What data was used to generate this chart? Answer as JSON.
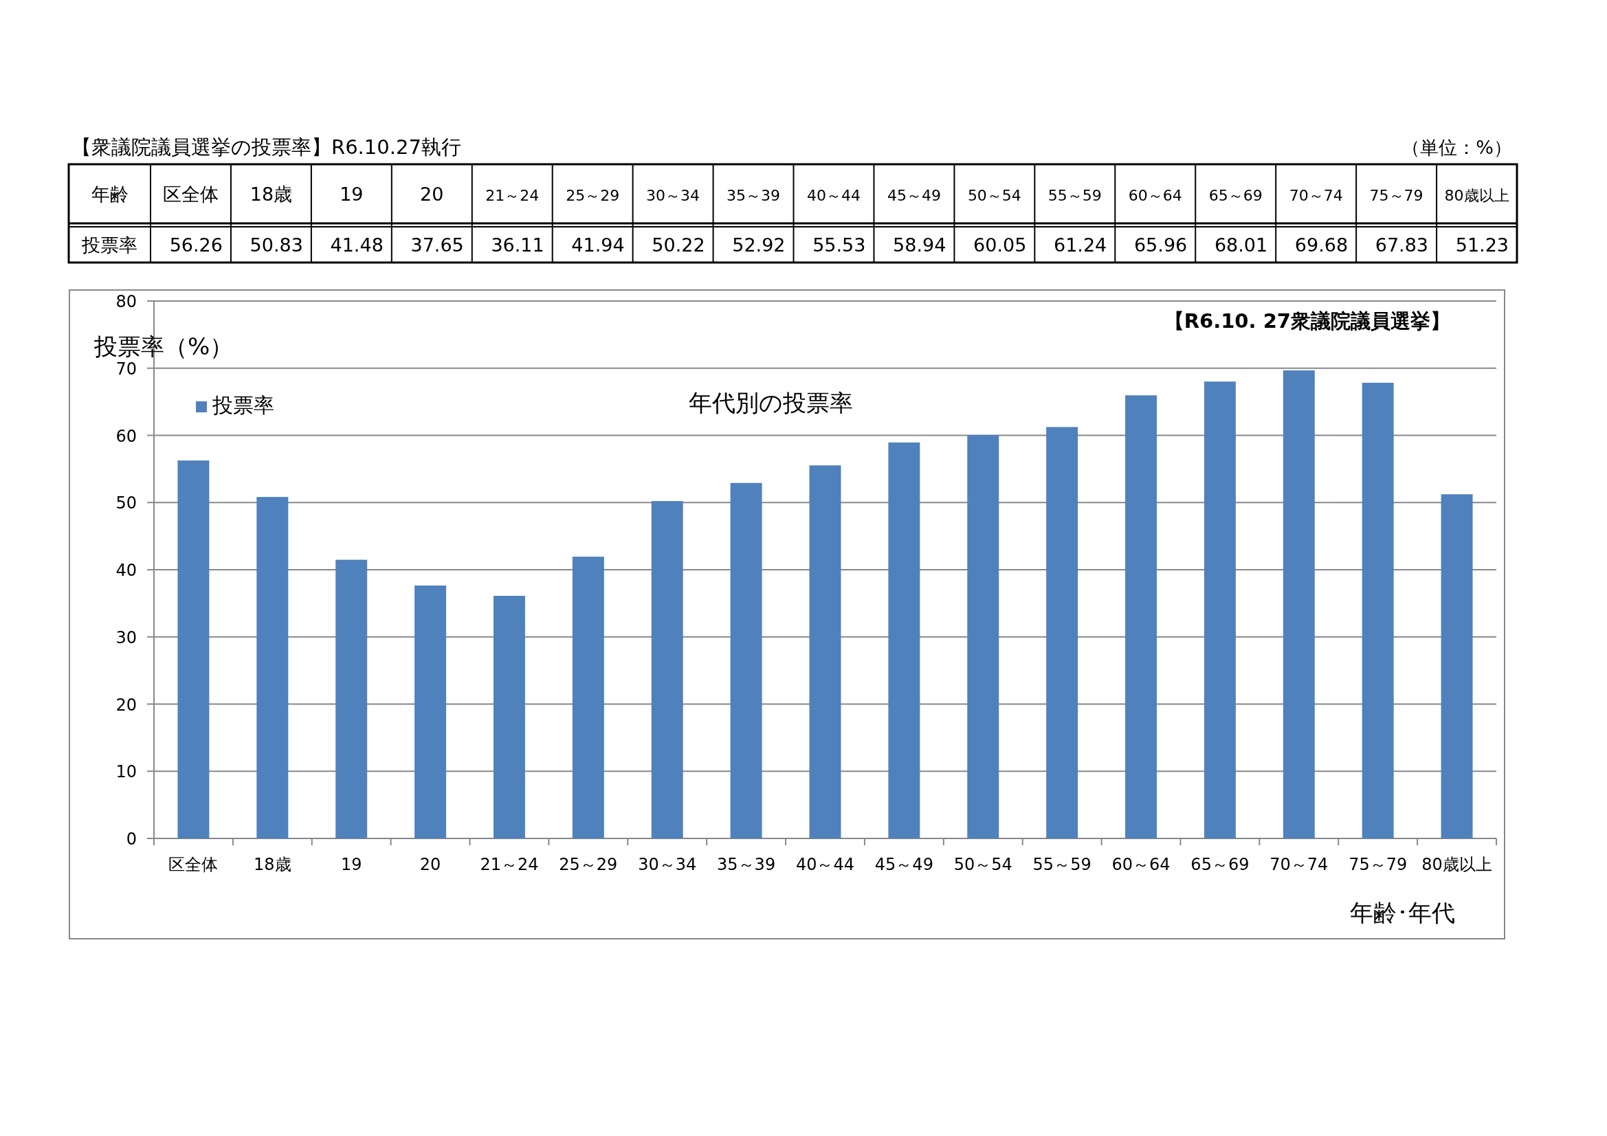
{
  "chart_data": {
    "type": "bar",
    "title": "年代別の投票率",
    "subtitle": "【R6.10. 27衆議院議員選挙】",
    "xlabel": "年齢･年代",
    "ylabel": "投票率（%）",
    "annotations": [
      "【衆議院議員選挙の投票率】R6.10.27執行",
      "（単位：%）",
      "年齢"
    ],
    "categories": [
      "区全体",
      "18歳",
      "19",
      "20",
      "21～24",
      "25～29",
      "30～34",
      "35～39",
      "40～44",
      "45～49",
      "50～54",
      "55～59",
      "60～64",
      "65～69",
      "70～74",
      "75～79",
      "80歳以上"
    ],
    "series": [
      {
        "name": "投票率",
        "color": "#4f81bd",
        "values": [
          56.26,
          50.83,
          41.48,
          37.65,
          36.11,
          41.94,
          50.22,
          52.92,
          55.53,
          58.94,
          60.05,
          61.24,
          65.96,
          68.01,
          69.68,
          67.83,
          51.23
        ]
      }
    ],
    "ylim": [
      0,
      80
    ],
    "yticks": [
      0,
      10,
      20,
      30,
      40,
      50,
      60,
      70,
      80
    ],
    "grid": "y",
    "legend": "top left",
    "data_labels": true
  }
}
